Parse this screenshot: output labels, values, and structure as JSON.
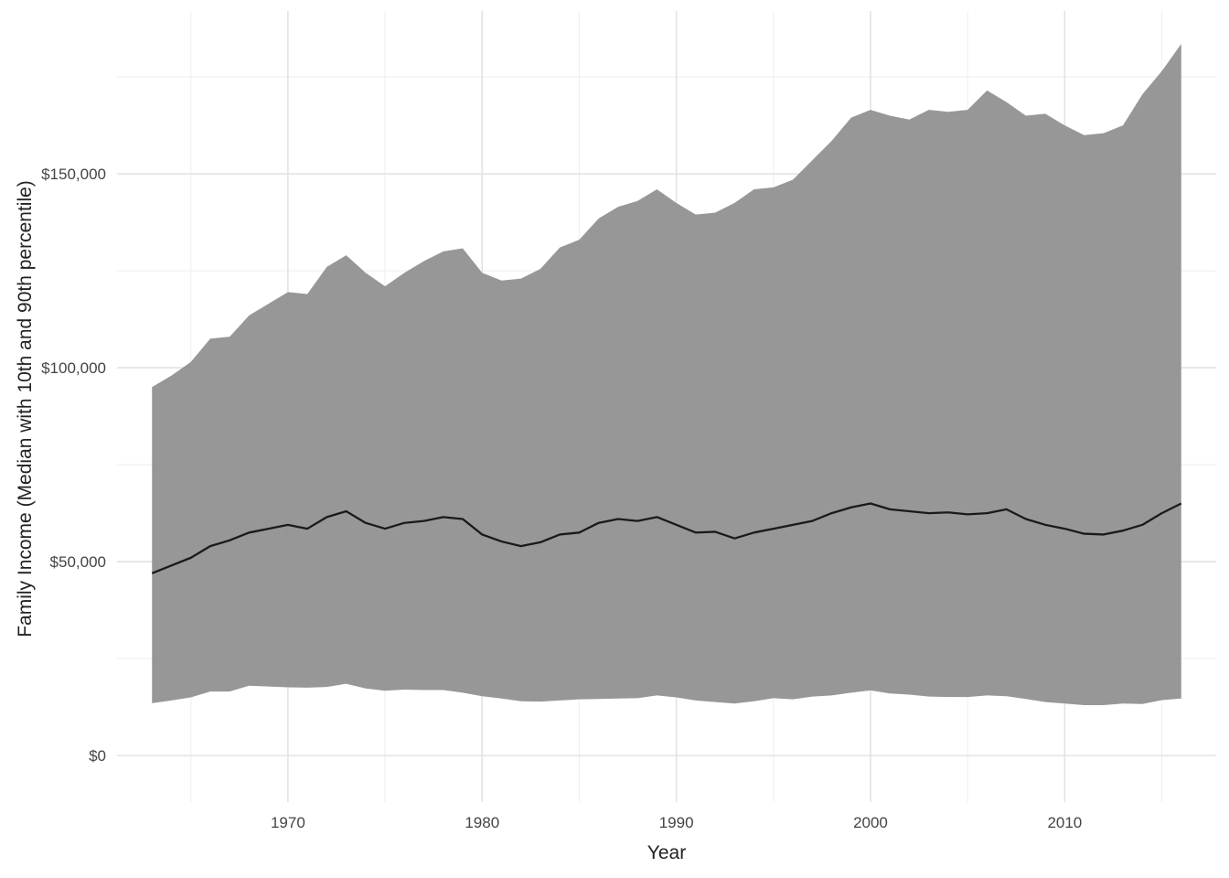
{
  "chart_data": {
    "type": "area",
    "xlabel": "Year",
    "ylabel": "Family Income (Median with 10th and 90th percentile)",
    "xlim": [
      1961.2,
      2017.8
    ],
    "ylim": [
      -12000,
      192000
    ],
    "x_ticks": [
      1970,
      1980,
      1990,
      2000,
      2010
    ],
    "x_tick_labels": [
      "1970",
      "1980",
      "1990",
      "2000",
      "2010"
    ],
    "y_ticks": [
      0,
      50000,
      100000,
      150000
    ],
    "y_tick_labels": [
      "$0",
      "$50,000",
      "$100,000",
      "$150,000"
    ],
    "grid": true,
    "legend": "none",
    "colors": {
      "ribbon": "#939393",
      "median_line": "#1a1a1a",
      "grid": "#e3e3e3"
    },
    "x": [
      1963,
      1964,
      1965,
      1966,
      1967,
      1968,
      1969,
      1970,
      1971,
      1972,
      1973,
      1974,
      1975,
      1976,
      1977,
      1978,
      1979,
      1980,
      1981,
      1982,
      1983,
      1984,
      1985,
      1986,
      1987,
      1988,
      1989,
      1990,
      1991,
      1992,
      1993,
      1994,
      1995,
      1996,
      1997,
      1998,
      1999,
      2000,
      2001,
      2002,
      2003,
      2004,
      2005,
      2006,
      2007,
      2008,
      2009,
      2010,
      2011,
      2012,
      2013,
      2014,
      2015,
      2016
    ],
    "series": [
      {
        "role": "percentile_90",
        "values": [
          95000,
          98000,
          101500,
          107500,
          108000,
          113500,
          116500,
          119500,
          119000,
          126000,
          129000,
          124500,
          121000,
          124500,
          127500,
          130000,
          130800,
          124500,
          122500,
          123000,
          125500,
          131000,
          133000,
          138500,
          141500,
          143000,
          146000,
          142500,
          139500,
          140000,
          142500,
          146000,
          146500,
          148500,
          153500,
          158500,
          164500,
          166500,
          165000,
          164000,
          166500,
          166000,
          166500,
          171500,
          168500,
          165000,
          165500,
          162500,
          160000,
          160500,
          162500,
          170500,
          176500,
          183500
        ]
      },
      {
        "role": "median",
        "values": [
          47000,
          49000,
          51000,
          54000,
          55500,
          57500,
          58500,
          59500,
          58500,
          61500,
          63000,
          60000,
          58500,
          60000,
          60500,
          61500,
          61000,
          57000,
          55200,
          54000,
          55000,
          57000,
          57500,
          60000,
          61000,
          60500,
          61500,
          59500,
          57500,
          57700,
          56000,
          57500,
          58500,
          59500,
          60500,
          62500,
          64000,
          65000,
          63500,
          63000,
          62500,
          62700,
          62200,
          62500,
          63500,
          61000,
          59500,
          58500,
          57200,
          57000,
          58000,
          59500,
          62500,
          65000
        ]
      },
      {
        "role": "percentile_10",
        "values": [
          13500,
          14200,
          15000,
          16500,
          16500,
          18000,
          17800,
          17600,
          17500,
          17700,
          18500,
          17300,
          16700,
          17000,
          16900,
          16900,
          16200,
          15300,
          14700,
          14000,
          13900,
          14200,
          14500,
          14600,
          14700,
          14800,
          15500,
          15000,
          14200,
          13800,
          13400,
          14000,
          14800,
          14500,
          15200,
          15500,
          16200,
          16800,
          16000,
          15700,
          15200,
          15100,
          15100,
          15500,
          15300,
          14600,
          13800,
          13400,
          13000,
          13000,
          13400,
          13300,
          14300,
          14700
        ]
      }
    ]
  }
}
